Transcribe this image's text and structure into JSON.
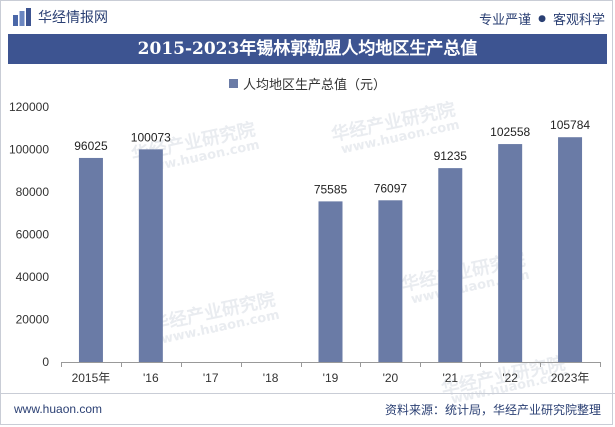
{
  "header": {
    "brand": "华经情报网",
    "tagline_left": "专业严谨",
    "tagline_right": "客观科学"
  },
  "chart_data": {
    "type": "bar",
    "title": "2015-2023年锡林郭勒盟人均地区生产总值",
    "categories": [
      "2015年",
      "'16",
      "'17",
      "'18",
      "'19",
      "'20",
      "'21",
      "'22",
      "2023年"
    ],
    "series": [
      {
        "name": "人均地区生产总值（元）",
        "values": [
          96025,
          100073,
          null,
          null,
          75585,
          76097,
          91235,
          102558,
          105784
        ],
        "color": "#6a7ba6"
      }
    ],
    "yticks": [
      0,
      20000,
      40000,
      60000,
      80000,
      100000,
      120000
    ],
    "ylim": [
      0,
      120000
    ],
    "xlabel": "",
    "ylabel": "",
    "grid": false,
    "legend": "top-center"
  },
  "footer": {
    "site": "www.huaon.com",
    "source": "资料来源：统计局，华经产业研究院整理"
  },
  "watermark": {
    "brand": "华经产业研究院",
    "url": "www.huaon.com"
  },
  "colors": {
    "title_bg": "#3d5491",
    "bar": "#6a7ba6",
    "text_dark": "#2a3f73"
  }
}
